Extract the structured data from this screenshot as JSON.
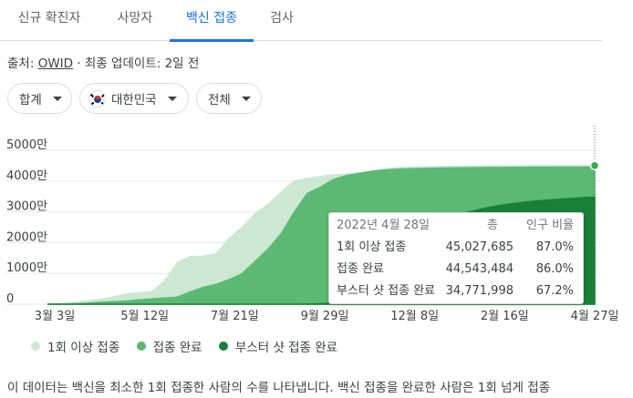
{
  "tabs": [
    {
      "label": "신규 확진자",
      "active": false
    },
    {
      "label": "사망자",
      "active": false
    },
    {
      "label": "백신 접종",
      "active": true
    },
    {
      "label": "검사",
      "active": false
    }
  ],
  "source": {
    "prefix": "출처:",
    "link": "OWID",
    "updated": "· 최종 업데이트: 2일 전"
  },
  "filters": {
    "total": "합계",
    "country": "대한민국",
    "range": "전체"
  },
  "chart_data": {
    "type": "area",
    "yticks": [
      "0",
      "1000만",
      "2000만",
      "3000만",
      "4000만",
      "5000만"
    ],
    "ytick_values": [
      0,
      10000000,
      20000000,
      30000000,
      40000000,
      50000000
    ],
    "xticks": [
      "3월 3일",
      "5월 12일",
      "7월 21일",
      "9월 29일",
      "12월 8일",
      "2월 16일",
      "4월 27일"
    ],
    "ylim": [
      0,
      50000000
    ],
    "x": [
      0,
      10,
      20,
      30,
      40,
      50,
      60,
      70,
      80,
      90,
      100,
      110,
      120,
      130,
      140,
      150,
      160,
      170,
      180,
      190,
      200,
      210,
      220,
      230,
      240,
      250,
      260,
      270,
      280,
      290,
      300,
      310,
      320,
      330,
      340,
      350,
      360,
      370,
      380,
      390,
      400,
      410,
      420,
      421
    ],
    "series": [
      {
        "name": "1회 이상 접종",
        "color": "#cce8d3",
        "values": [
          0,
          200000,
          600000,
          1000000,
          1500000,
          2300000,
          3300000,
          3700000,
          4000000,
          7500000,
          13500000,
          15500000,
          15600000,
          16500000,
          21500000,
          25000000,
          29500000,
          32500000,
          36500000,
          40000000,
          40800000,
          41500000,
          42000000,
          42300000,
          42700000,
          43200000,
          44000000,
          44300000,
          44500000,
          44600000,
          44700000,
          44750000,
          44800000,
          44850000,
          44900000,
          44950000,
          44980000,
          45000000,
          45010000,
          45015000,
          45020000,
          45025000,
          45027000,
          45027685
        ]
      },
      {
        "name": "접종 완료",
        "color": "#5bb974",
        "values": [
          0,
          0,
          100000,
          300000,
          600000,
          800000,
          1000000,
          1400000,
          1700000,
          2000000,
          2300000,
          4000000,
          5500000,
          6500000,
          8000000,
          10000000,
          14000000,
          18000000,
          23000000,
          30000000,
          36000000,
          38000000,
          40500000,
          41800000,
          42500000,
          43200000,
          43600000,
          43900000,
          44000000,
          44100000,
          44200000,
          44250000,
          44300000,
          44350000,
          44400000,
          44420000,
          44450000,
          44480000,
          44500000,
          44510000,
          44520000,
          44530000,
          44540000,
          44543484
        ]
      },
      {
        "name": "부스터 샷 접종 완료",
        "color": "#188038",
        "values": [
          0,
          0,
          0,
          0,
          0,
          0,
          0,
          0,
          0,
          0,
          0,
          0,
          0,
          0,
          0,
          0,
          0,
          0,
          0,
          0,
          50000,
          150000,
          300000,
          600000,
          1500000,
          3000000,
          6000000,
          11000000,
          17000000,
          22000000,
          26000000,
          28000000,
          29500000,
          30500000,
          31500000,
          32200000,
          32800000,
          33300000,
          33700000,
          34000000,
          34300000,
          34600000,
          34770000,
          34771998
        ]
      }
    ]
  },
  "tooltip": {
    "date": "2022년 4월 28일",
    "col_total": "총",
    "col_ratio": "인구 비율",
    "rows": [
      {
        "label": "1회 이상 접종",
        "total": "45,027,685",
        "ratio": "87.0%"
      },
      {
        "label": "접종 완료",
        "total": "44,543,484",
        "ratio": "86.0%"
      },
      {
        "label": "부스터 샷 접종 완료",
        "total": "34,771,998",
        "ratio": "67.2%"
      }
    ]
  },
  "legend": [
    "1회 이상 접종",
    "접종 완료",
    "부스터 샷 접종 완료"
  ],
  "note": "이 데이터는 백신을 최소한 1회 접종한 사람의 수를 나타냅니다. 백신 접종을 완료한 사람은 1회 넘게 접종"
}
